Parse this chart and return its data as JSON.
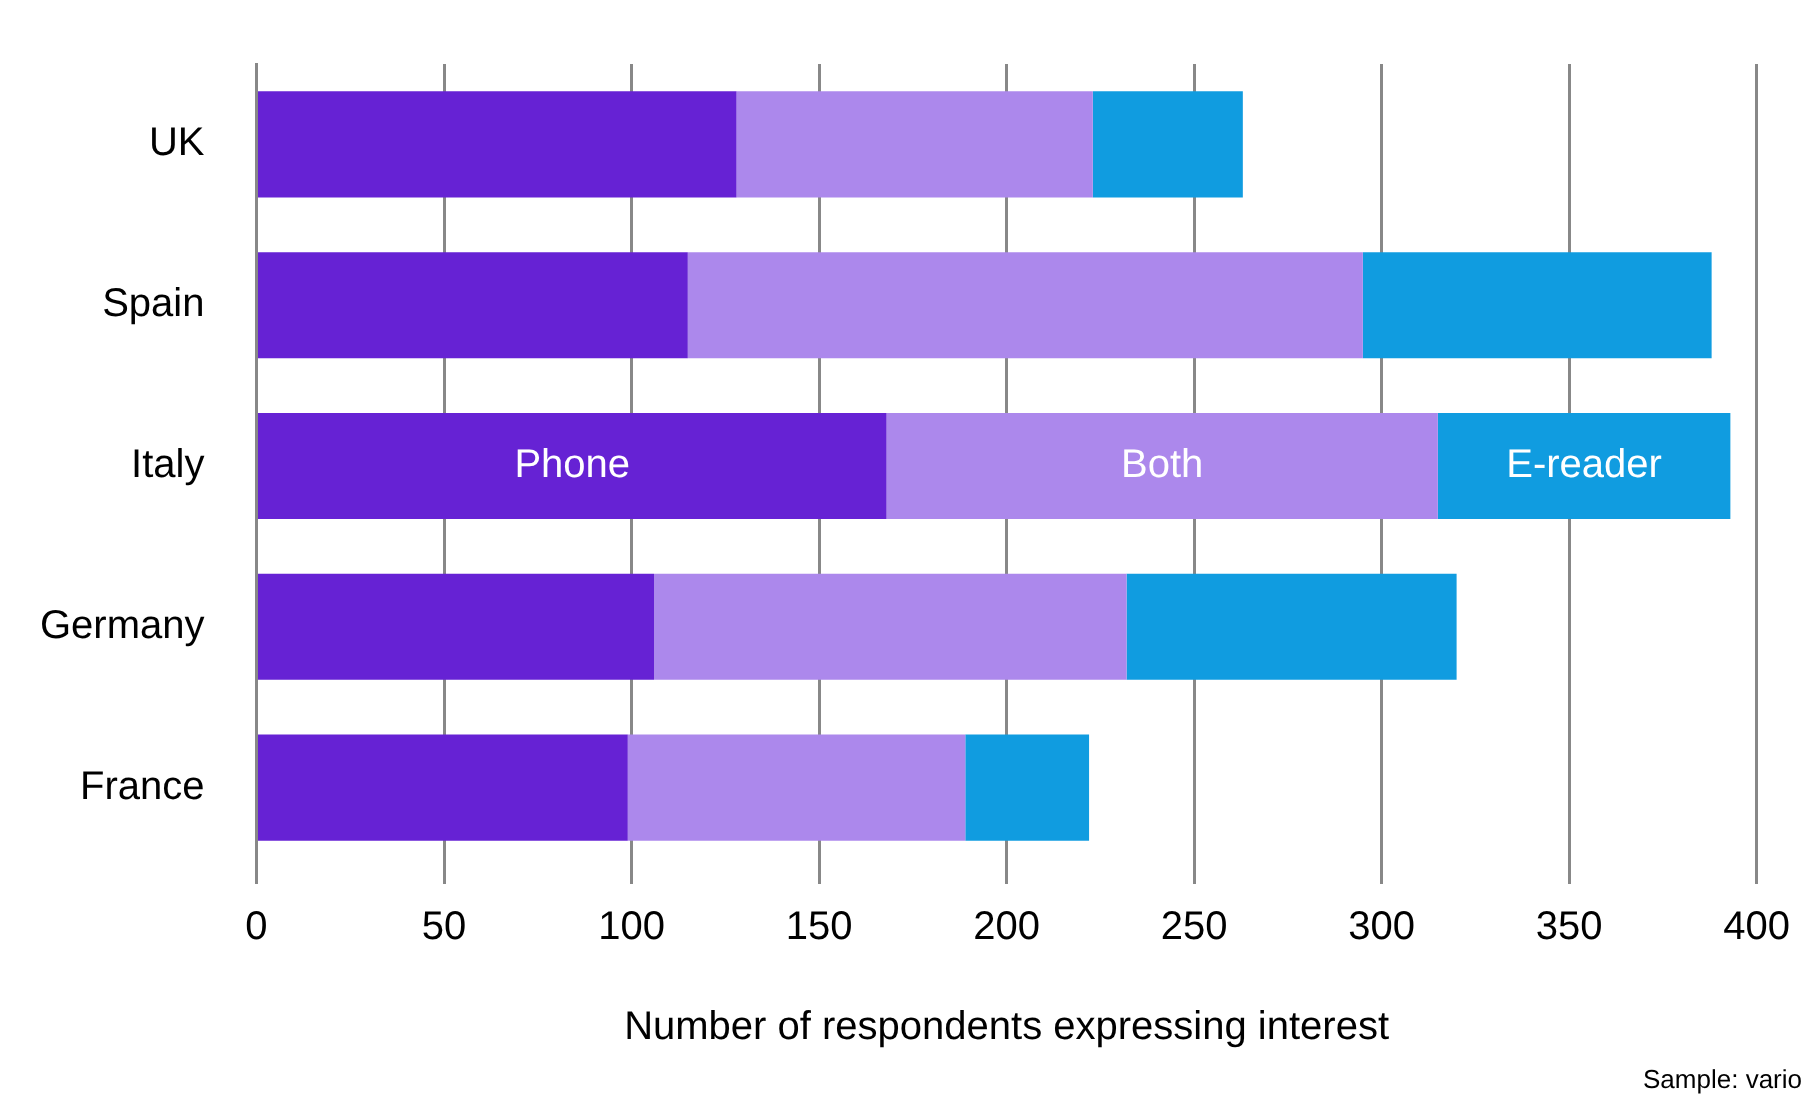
{
  "chart_data": {
    "type": "bar",
    "orientation": "horizontal",
    "stacked": true,
    "xlabel": "Number of respondents expressing interest",
    "categories": [
      "UK",
      "Spain",
      "Italy",
      "Germany",
      "France"
    ],
    "series": [
      {
        "name": "Phone",
        "color": "#6622d4",
        "values": [
          128,
          115,
          168,
          106,
          99
        ]
      },
      {
        "name": "Both",
        "color": "#ac88ec",
        "values": [
          95,
          180,
          147,
          126,
          90
        ]
      },
      {
        "name": "E-reader",
        "color": "#109ce0",
        "values": [
          40,
          93,
          78,
          88,
          33
        ]
      }
    ],
    "xlim": [
      0,
      400
    ],
    "xticks": [
      0,
      50,
      100,
      150,
      200,
      250,
      300,
      350,
      400
    ],
    "grid": "x",
    "legend": false,
    "annotations": [
      "Sample: vario"
    ]
  }
}
